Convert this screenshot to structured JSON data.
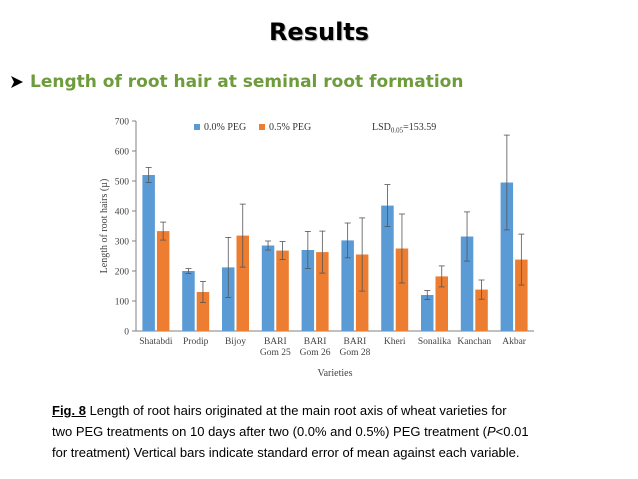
{
  "slide": {
    "title": "Results",
    "subheading": "Length of root hair at seminal root formation",
    "bullet_icon": "arrow-bullet-icon"
  },
  "caption": {
    "figure_label": "Fig. 8",
    "line1": " Length of root hairs originated at the main root axis of wheat varieties for",
    "line2a": "two PEG treatments on 10 days after two (0.0% and 0.5%) PEG treatment (",
    "line2b": "P",
    "line2c": "<0.01",
    "line3": "for treatment) Vertical bars indicate standard error of mean against each variable."
  },
  "colors": {
    "series_0": "#5b9bd5",
    "series_1": "#ed7d31",
    "subheading": "#6e9b3b"
  },
  "chart_data": {
    "type": "bar",
    "xlabel": "Varieties",
    "ylabel": "Length of root hairs (µ)",
    "ylim": [
      0,
      700
    ],
    "yticks": [
      0,
      100,
      200,
      300,
      400,
      500,
      600,
      700
    ],
    "grid": false,
    "legend_position": "top-center",
    "annotation": {
      "prefix": "LSD",
      "subscript": "0.05",
      "suffix": "=153.59"
    },
    "categories": [
      [
        "Shatabdi"
      ],
      [
        "Prodip"
      ],
      [
        "Bijoy"
      ],
      [
        "BARI",
        "Gom 25"
      ],
      [
        "BARI",
        "Gom 26"
      ],
      [
        "BARI",
        "Gom 28"
      ],
      [
        "Kheri"
      ],
      [
        "Sonalika"
      ],
      [
        "Kanchan"
      ],
      [
        "Akbar"
      ]
    ],
    "series": [
      {
        "name": "0.0% PEG",
        "values": [
          520,
          200,
          212,
          285,
          270,
          302,
          418,
          120,
          315,
          495
        ],
        "errors": [
          25,
          8,
          100,
          15,
          62,
          58,
          70,
          15,
          82,
          158
        ]
      },
      {
        "name": "0.5% PEG",
        "values": [
          333,
          130,
          318,
          268,
          263,
          255,
          275,
          182,
          138,
          238
        ],
        "errors": [
          30,
          35,
          105,
          30,
          70,
          122,
          115,
          35,
          32,
          85
        ]
      }
    ]
  }
}
